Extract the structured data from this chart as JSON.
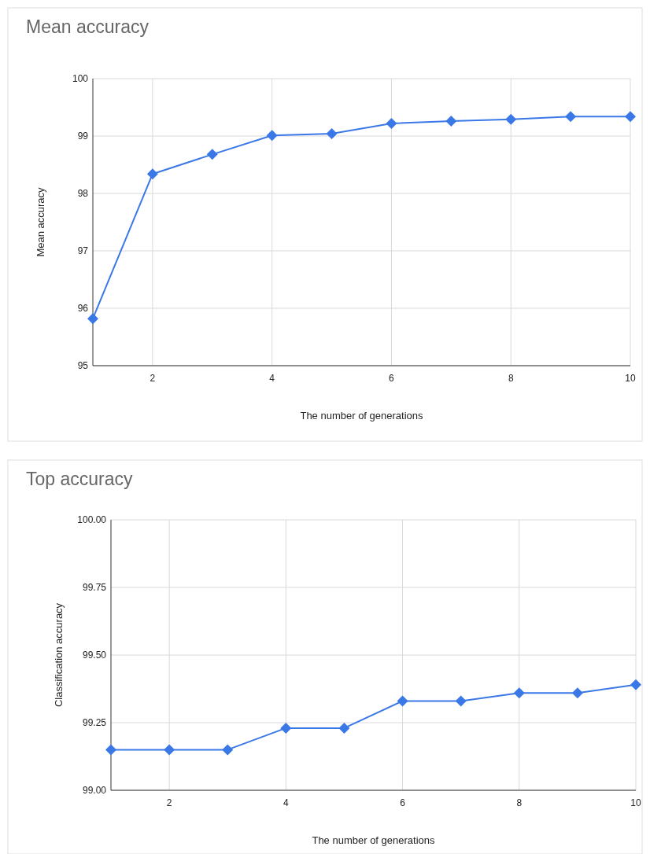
{
  "chart_data": [
    {
      "type": "line",
      "title": "Mean accuracy",
      "xlabel": "The number of generations",
      "ylabel": "Mean accuracy",
      "x": [
        1,
        2,
        3,
        4,
        5,
        6,
        7,
        8,
        9,
        10
      ],
      "series": [
        {
          "color": "#3b78e7",
          "values": [
            95.82,
            98.34,
            98.68,
            99.01,
            99.04,
            99.22,
            99.26,
            99.29,
            99.34,
            99.34
          ]
        }
      ],
      "xlim": [
        1,
        10
      ],
      "xticks": [
        2,
        4,
        6,
        8,
        10
      ],
      "ylim": [
        95,
        100
      ],
      "yticks": [
        95,
        96,
        97,
        98,
        99,
        100
      ],
      "grid": true,
      "marker": "diamond",
      "line_style": "solid"
    },
    {
      "type": "line",
      "title": "Top accuracy",
      "xlabel": "The number of generations",
      "ylabel": "Classification accuracy",
      "x": [
        1,
        2,
        3,
        4,
        5,
        6,
        7,
        8,
        9,
        10
      ],
      "series": [
        {
          "color": "#3b78e7",
          "values": [
            99.15,
            99.15,
            99.15,
            99.23,
            99.23,
            99.33,
            99.33,
            99.36,
            99.36,
            99.39
          ]
        }
      ],
      "xlim": [
        1,
        10
      ],
      "xticks": [
        2,
        4,
        6,
        8,
        10
      ],
      "ylim": [
        99,
        100
      ],
      "yticks": [
        {
          "value": 99,
          "label": "99.00"
        },
        {
          "value": 99.25,
          "label": "99.25"
        },
        {
          "value": 99.5,
          "label": "99.50"
        },
        {
          "value": 99.75,
          "label": "99.75"
        },
        {
          "value": 100,
          "label": "100.00"
        }
      ],
      "grid": true,
      "marker": "diamond",
      "line_style": "solid"
    }
  ]
}
